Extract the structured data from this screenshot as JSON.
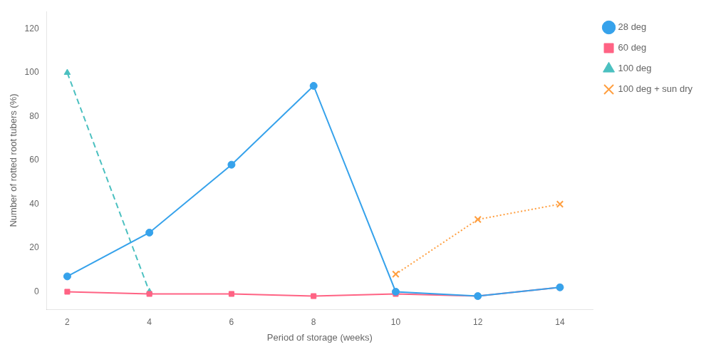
{
  "chart_data": {
    "type": "line",
    "xlabel": "Period of storage (weeks)",
    "ylabel": "Number of rotted root tubers (%)",
    "xlim": [
      1.5,
      14.8
    ],
    "xticks": [
      2,
      4,
      6,
      8,
      10,
      12,
      14
    ],
    "ylim": [
      -8,
      128
    ],
    "yticks": [
      0,
      20,
      40,
      60,
      80,
      100,
      120
    ],
    "grid": false,
    "legend": "right",
    "series": [
      {
        "name": "28 deg",
        "x": [
          2,
          4,
          6,
          8,
          10,
          12,
          14
        ],
        "values": [
          7,
          27,
          58,
          94,
          0,
          -2,
          2
        ],
        "marker": "circle",
        "line_style": "solid"
      },
      {
        "name": "60 deg",
        "x": [
          2,
          4,
          6,
          8,
          10,
          12,
          14
        ],
        "values": [
          0,
          -1,
          -1,
          -2,
          -1,
          -2,
          2
        ],
        "marker": "square",
        "line_style": "solid"
      },
      {
        "name": "100 deg",
        "x": [
          2,
          4
        ],
        "values": [
          100,
          0
        ],
        "marker": "triangle",
        "line_style": "dashed"
      },
      {
        "name": "100 deg + sun dry",
        "x": [
          10,
          12,
          14
        ],
        "values": [
          8,
          33,
          40
        ],
        "marker": "cross",
        "line_style": "dotted"
      }
    ]
  }
}
